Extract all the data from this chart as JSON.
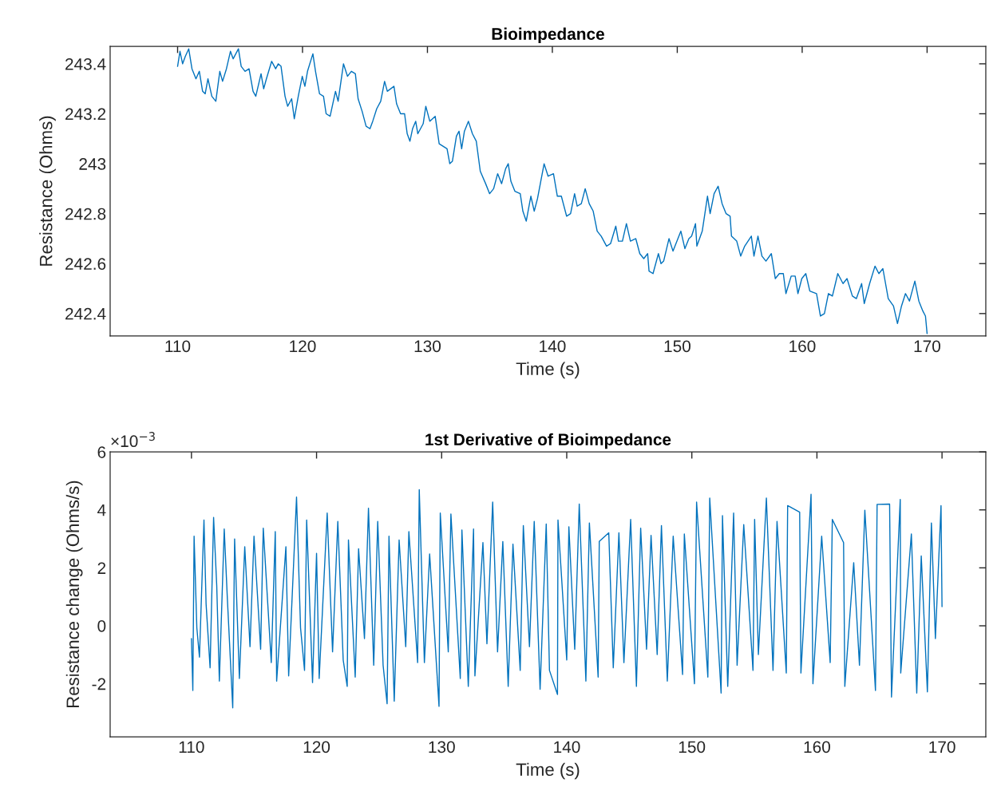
{
  "chart_data": [
    {
      "type": "line",
      "title": "Bioimpedance",
      "xlabel": "Time (s)",
      "ylabel": "Resistance (Ohms)",
      "xlim": [
        104.6,
        174.7
      ],
      "ylim": [
        242.31,
        243.47
      ],
      "xticks": [
        110,
        120,
        130,
        140,
        150,
        160,
        170
      ],
      "yticks": [
        242.4,
        242.6,
        242.8,
        243,
        243.2,
        243.4
      ],
      "grid": false,
      "series": [
        {
          "color": "#0072bd",
          "x": [
            110.0,
            110.19,
            110.4,
            110.62,
            110.89,
            111.15,
            111.47,
            111.74,
            112.0,
            112.21,
            112.43,
            112.74,
            113.06,
            113.38,
            113.6,
            113.91,
            114.23,
            114.45,
            114.87,
            115.09,
            115.4,
            115.72,
            116.04,
            116.26,
            116.68,
            116.89,
            117.11,
            117.53,
            117.85,
            118.06,
            118.28,
            118.6,
            118.81,
            119.13,
            119.34,
            119.66,
            119.98,
            120.19,
            120.4,
            120.83,
            121.04,
            121.36,
            121.68,
            121.89,
            122.21,
            122.64,
            122.85,
            123.28,
            123.6,
            123.91,
            124.23,
            124.45,
            124.77,
            125.09,
            125.4,
            125.62,
            125.94,
            126.26,
            126.57,
            126.79,
            127.32,
            127.53,
            127.85,
            128.17,
            128.38,
            128.6,
            128.81,
            129.06,
            129.23,
            129.66,
            129.87,
            130.19,
            130.62,
            130.94,
            131.57,
            131.79,
            132.0,
            132.32,
            132.53,
            132.74,
            132.96,
            133.28,
            133.6,
            133.91,
            134.23,
            134.66,
            134.98,
            135.3,
            135.62,
            135.94,
            136.26,
            136.47,
            136.68,
            137.0,
            137.43,
            137.64,
            137.91,
            138.28,
            138.55,
            138.81,
            139.34,
            139.66,
            140.09,
            140.4,
            140.72,
            141.14,
            141.46,
            141.78,
            141.99,
            142.32,
            142.63,
            142.95,
            143.27,
            143.59,
            143.91,
            144.34,
            144.66,
            145.08,
            145.29,
            145.61,
            145.93,
            146.25,
            146.68,
            147.0,
            147.32,
            147.63,
            147.74,
            148.06,
            148.49,
            148.7,
            148.91,
            149.34,
            149.66,
            150.29,
            150.61,
            150.93,
            151.15,
            151.46,
            151.57,
            152.0,
            152.42,
            152.63,
            152.95,
            153.27,
            153.59,
            153.91,
            154.23,
            154.34,
            154.76,
            155.08,
            155.4,
            155.93,
            156.14,
            156.46,
            156.78,
            157.1,
            157.53,
            157.85,
            158.17,
            158.49,
            158.7,
            159.12,
            159.44,
            159.66,
            159.97,
            160.29,
            160.61,
            161.15,
            161.46,
            161.78,
            162.1,
            162.42,
            162.85,
            163.27,
            163.59,
            164.02,
            164.34,
            164.76,
            164.97,
            165.4,
            165.83,
            166.14,
            166.46,
            166.89,
            167.31,
            167.63,
            167.95,
            168.27,
            168.59,
            169.02,
            169.34,
            169.66,
            169.87,
            170.0
          ],
          "values": [
            243.39,
            243.45,
            243.4,
            243.43,
            243.46,
            243.38,
            243.34,
            243.37,
            243.29,
            243.28,
            243.34,
            243.27,
            243.25,
            243.37,
            243.33,
            243.38,
            243.45,
            243.42,
            243.46,
            243.39,
            243.37,
            243.38,
            243.29,
            243.27,
            243.36,
            243.3,
            243.34,
            243.41,
            243.38,
            243.4,
            243.39,
            243.27,
            243.23,
            243.26,
            243.18,
            243.27,
            243.35,
            243.31,
            243.37,
            243.44,
            243.37,
            243.28,
            243.27,
            243.2,
            243.19,
            243.29,
            243.25,
            243.4,
            243.35,
            243.37,
            243.36,
            243.26,
            243.21,
            243.15,
            243.14,
            243.17,
            243.22,
            243.25,
            243.33,
            243.29,
            243.31,
            243.24,
            243.2,
            243.2,
            243.12,
            243.09,
            243.14,
            243.17,
            243.12,
            243.16,
            243.23,
            243.17,
            243.19,
            243.08,
            243.06,
            243.0,
            243.01,
            243.11,
            243.13,
            243.06,
            243.13,
            243.17,
            243.12,
            243.09,
            242.97,
            242.92,
            242.88,
            242.9,
            242.96,
            242.92,
            242.98,
            243.0,
            242.93,
            242.89,
            242.88,
            242.81,
            242.77,
            242.87,
            242.81,
            242.86,
            243.0,
            242.95,
            242.96,
            242.87,
            242.87,
            242.79,
            242.8,
            242.88,
            242.83,
            242.84,
            242.9,
            242.84,
            242.81,
            242.73,
            242.71,
            242.67,
            242.68,
            242.75,
            242.69,
            242.69,
            242.76,
            242.69,
            242.7,
            242.64,
            242.62,
            242.64,
            242.57,
            242.56,
            242.64,
            242.6,
            242.61,
            242.7,
            242.65,
            242.73,
            242.66,
            242.7,
            242.71,
            242.76,
            242.67,
            242.73,
            242.87,
            242.8,
            242.88,
            242.91,
            242.84,
            242.8,
            242.79,
            242.71,
            242.69,
            242.63,
            242.67,
            242.71,
            242.63,
            242.71,
            242.63,
            242.61,
            242.64,
            242.54,
            242.56,
            242.56,
            242.48,
            242.55,
            242.55,
            242.48,
            242.54,
            242.56,
            242.49,
            242.48,
            242.39,
            242.4,
            242.48,
            242.47,
            242.56,
            242.52,
            242.54,
            242.47,
            242.46,
            242.52,
            242.44,
            242.52,
            242.59,
            242.56,
            242.58,
            242.46,
            242.43,
            242.36,
            242.43,
            242.48,
            242.45,
            242.53,
            242.45,
            242.41,
            242.39,
            242.32
          ]
        }
      ]
    },
    {
      "type": "line",
      "title": "1st Derivative of Bioimpedance",
      "xlabel": "Time (s)",
      "ylabel": "Resistance change (Ohms/s)",
      "annotations": [
        "×10$^{−3}$"
      ],
      "xlim": [
        103.5,
        173.5
      ],
      "ylim": [
        -3.83,
        6
      ],
      "xticks": [
        110,
        120,
        130,
        140,
        150,
        160,
        170
      ],
      "yticks": [
        -2,
        0,
        2,
        4,
        6
      ],
      "grid": false,
      "series": [
        {
          "color": "#0072bd",
          "x": [
            110.0,
            110.11,
            110.21,
            110.43,
            110.64,
            111.0,
            111.17,
            111.49,
            111.77,
            112.02,
            112.23,
            112.62,
            112.87,
            113.3,
            113.45,
            113.83,
            114.26,
            114.68,
            115.0,
            115.53,
            115.74,
            116.38,
            116.7,
            116.81,
            117.55,
            117.77,
            118.09,
            118.4,
            118.72,
            119.04,
            119.21,
            119.68,
            120.0,
            120.21,
            120.85,
            121.28,
            121.7,
            122.13,
            122.45,
            122.55,
            123.09,
            123.36,
            123.83,
            124.15,
            124.57,
            124.89,
            125.32,
            125.64,
            125.79,
            126.21,
            126.6,
            127.13,
            127.38,
            128.08,
            128.21,
            128.62,
            129.04,
            129.79,
            129.89,
            130.53,
            130.74,
            131.49,
            131.62,
            132.13,
            132.55,
            132.66,
            133.3,
            133.62,
            134.08,
            134.47,
            134.89,
            135.32,
            135.7,
            136.28,
            136.53,
            137.02,
            137.4,
            137.87,
            138.36,
            138.62,
            139.26,
            139.3,
            140.0,
            140.17,
            140.64,
            141.0,
            141.53,
            141.81,
            142.51,
            142.6,
            143.36,
            143.72,
            144.17,
            144.57,
            145.11,
            145.57,
            145.91,
            146.38,
            146.74,
            147.23,
            147.57,
            148.04,
            148.51,
            149.26,
            149.4,
            150.21,
            150.38,
            151.28,
            151.43,
            152.34,
            152.45,
            152.87,
            153.34,
            153.62,
            154.15,
            154.89,
            155.02,
            155.32,
            155.96,
            156.49,
            156.81,
            157.55,
            157.66,
            158.62,
            158.72,
            159.53,
            159.68,
            160.38,
            161.06,
            161.23,
            162.13,
            162.23,
            162.94,
            163.4,
            163.83,
            164.68,
            164.81,
            165.81,
            165.96,
            166.66,
            166.7,
            167.55,
            167.98,
            168.34,
            168.83,
            169.15,
            169.47,
            169.92,
            170.0
          ],
          "values": [
            -0.44,
            -2.23,
            3.09,
            -0.07,
            -1.08,
            3.65,
            0.75,
            -1.45,
            3.74,
            1.4,
            -1.91,
            3.34,
            0.94,
            -2.83,
            3.0,
            -1.82,
            2.73,
            -0.72,
            3.09,
            -0.81,
            3.37,
            -1.27,
            3.25,
            -1.91,
            2.73,
            -1.73,
            1.4,
            4.44,
            -0.07,
            -1.54,
            3.65,
            -1.96,
            2.5,
            -1.82,
            3.89,
            -0.9,
            3.6,
            -1.18,
            -2.09,
            2.96,
            -1.77,
            2.66,
            -0.44,
            4.06,
            -1.36,
            3.6,
            -1.36,
            -2.69,
            3.09,
            -2.6,
            2.96,
            -0.72,
            3.25,
            -1.27,
            4.7,
            -1.27,
            2.48,
            -2.78,
            3.89,
            -0.9,
            3.86,
            -1.82,
            3.31,
            -2.09,
            3.34,
            -1.73,
            2.87,
            -0.62,
            4.27,
            -0.9,
            2.91,
            -2.09,
            2.82,
            -1.54,
            3.46,
            -0.72,
            3.6,
            -2.19,
            3.51,
            -1.54,
            -2.37,
            3.65,
            -1.18,
            3.42,
            -0.81,
            4.2,
            -1.91,
            3.55,
            -1.77,
            2.91,
            3.21,
            -1.45,
            3.21,
            -1.27,
            3.67,
            -2.09,
            3.37,
            -0.81,
            3.12,
            -0.99,
            3.46,
            -1.91,
            3.09,
            -1.68,
            3.17,
            -2.0,
            4.27,
            -1.77,
            4.41,
            -2.32,
            3.8,
            -2.09,
            3.89,
            -1.36,
            3.49,
            -1.54,
            3.67,
            -0.99,
            4.41,
            -1.54,
            3.6,
            -1.63,
            4.15,
            3.92,
            -1.63,
            4.54,
            -2.0,
            3.09,
            -1.27,
            3.67,
            2.87,
            -2.09,
            2.18,
            -1.36,
            3.99,
            -2.23,
            4.19,
            4.2,
            -2.46,
            4.36,
            -1.63,
            3.17,
            -2.32,
            2.41,
            -2.28,
            3.55,
            -0.44,
            4.15,
            0.66
          ]
        }
      ]
    }
  ]
}
